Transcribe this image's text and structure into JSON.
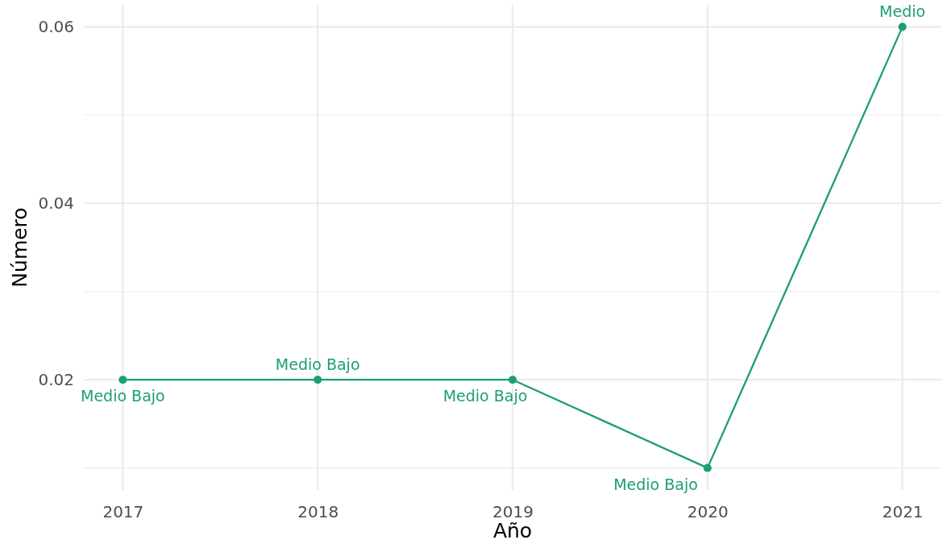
{
  "chart_data": {
    "type": "line",
    "xlabel": "Año",
    "ylabel": "Número",
    "x": [
      2017,
      2018,
      2019,
      2020,
      2021
    ],
    "series": [
      {
        "color": "#1b9e77",
        "values": [
          0.02,
          0.02,
          0.02,
          0.01,
          0.06
        ]
      }
    ],
    "xlim": [
      2016.8,
      2021.2
    ],
    "xticks": [
      2017,
      2018,
      2019,
      2020,
      2021
    ],
    "ylim": [
      0.0075,
      0.0625
    ],
    "yticks": [
      {
        "value": 0.01,
        "label": null
      },
      0.02,
      {
        "value": 0.03,
        "label": null
      },
      0.04,
      {
        "value": 0.05,
        "label": null
      },
      0.06
    ],
    "grid": true,
    "marker": "circle",
    "line_style": "solid",
    "annotations": [
      {
        "text": "Medio Bajo",
        "x": 2017,
        "y": 0.02
      },
      {
        "text": "Medio Bajo",
        "x": 2018,
        "y": 0.02
      },
      {
        "text": "Medio Bajo",
        "x": 2019,
        "y": 0.02
      },
      {
        "text": "Medio Bajo",
        "x": 2020,
        "y": 0.01
      },
      {
        "text": "Medio",
        "x": 2021,
        "y": 0.06
      }
    ]
  }
}
